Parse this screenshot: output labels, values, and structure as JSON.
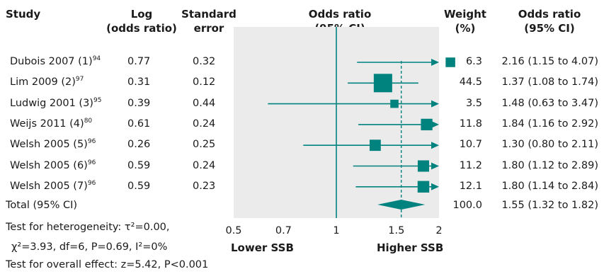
{
  "headers": {
    "study": "Study",
    "log_or": [
      "Log",
      "(odds ratio)"
    ],
    "se": [
      "Standard",
      "error"
    ],
    "or_ci": [
      "Odds ratio",
      "(95% CI)"
    ],
    "weight": [
      "Weight",
      "(%)"
    ],
    "or_ci2": [
      "Odds ratio",
      "(95% CI)"
    ]
  },
  "rows": [
    {
      "study": "Dubois 2007 (1)",
      "ref": "94",
      "log_or": "0.77",
      "se": "0.32",
      "weight": "6.3",
      "or_text": "2.16 (1.15 to 4.07)"
    },
    {
      "study": "Lim 2009 (2)",
      "ref": "97",
      "log_or": "0.31",
      "se": "0.12",
      "weight": "44.5",
      "or_text": "1.37 (1.08 to 1.74)"
    },
    {
      "study": "Ludwig 2001 (3)",
      "ref": "95",
      "log_or": "0.39",
      "se": "0.44",
      "weight": "3.5",
      "or_text": "1.48 (0.63 to 3.47)"
    },
    {
      "study": "Weijs 2011 (4)",
      "ref": "80",
      "log_or": "0.61",
      "se": "0.24",
      "weight": "11.8",
      "or_text": "1.84 (1.16 to 2.92)"
    },
    {
      "study": "Welsh 2005 (5)",
      "ref": "96",
      "log_or": "0.26",
      "se": "0.25",
      "weight": "10.7",
      "or_text": "1.30 (0.80 to 2.11)"
    },
    {
      "study": "Welsh 2005 (6)",
      "ref": "96",
      "log_or": "0.59",
      "se": "0.24",
      "weight": "11.2",
      "or_text": "1.80 (1.12 to 2.89)"
    },
    {
      "study": "Welsh 2005 (7)",
      "ref": "96",
      "log_or": "0.59",
      "se": "0.23",
      "weight": "12.1",
      "or_text": "1.80 (1.14 to 2.84)"
    }
  ],
  "total": {
    "label": "Total (95% CI)",
    "weight": "100.0",
    "or_text": "1.55 (1.32 to 1.82)"
  },
  "footer": {
    "heterogeneity_1": "Test for heterogeneity: τ²=0.00,",
    "heterogeneity_2": "χ²=3.93, df=6, P=0.69, I²=0%",
    "overall": "Test for overall effect: z=5.42, P<0.001"
  },
  "axis": {
    "ticks": [
      "0.5",
      "0.7",
      "1",
      "1.5",
      "2"
    ],
    "left_label": "Lower SSB",
    "right_label": "Higher SSB"
  },
  "colors": {
    "marker": "#00827f",
    "panel": "#ebebeb",
    "text": "#1a1a1a"
  },
  "chart_data": {
    "type": "forest",
    "scale": "log",
    "xlim": [
      0.5,
      2
    ],
    "reference_line": 1,
    "studies": [
      {
        "name": "Dubois 2007 (1)",
        "or": 2.16,
        "lo": 1.15,
        "hi": 4.07,
        "weight": 6.3
      },
      {
        "name": "Lim 2009 (2)",
        "or": 1.37,
        "lo": 1.08,
        "hi": 1.74,
        "weight": 44.5
      },
      {
        "name": "Ludwig 2001 (3)",
        "or": 1.48,
        "lo": 0.63,
        "hi": 3.47,
        "weight": 3.5
      },
      {
        "name": "Weijs 2011 (4)",
        "or": 1.84,
        "lo": 1.16,
        "hi": 2.92,
        "weight": 11.8
      },
      {
        "name": "Welsh 2005 (5)",
        "or": 1.3,
        "lo": 0.8,
        "hi": 2.11,
        "weight": 10.7
      },
      {
        "name": "Welsh 2005 (6)",
        "or": 1.8,
        "lo": 1.12,
        "hi": 2.89,
        "weight": 11.2
      },
      {
        "name": "Welsh 2005 (7)",
        "or": 1.8,
        "lo": 1.14,
        "hi": 2.84,
        "weight": 12.1
      }
    ],
    "pooled": {
      "or": 1.55,
      "lo": 1.32,
      "hi": 1.82,
      "weight": 100.0
    }
  }
}
